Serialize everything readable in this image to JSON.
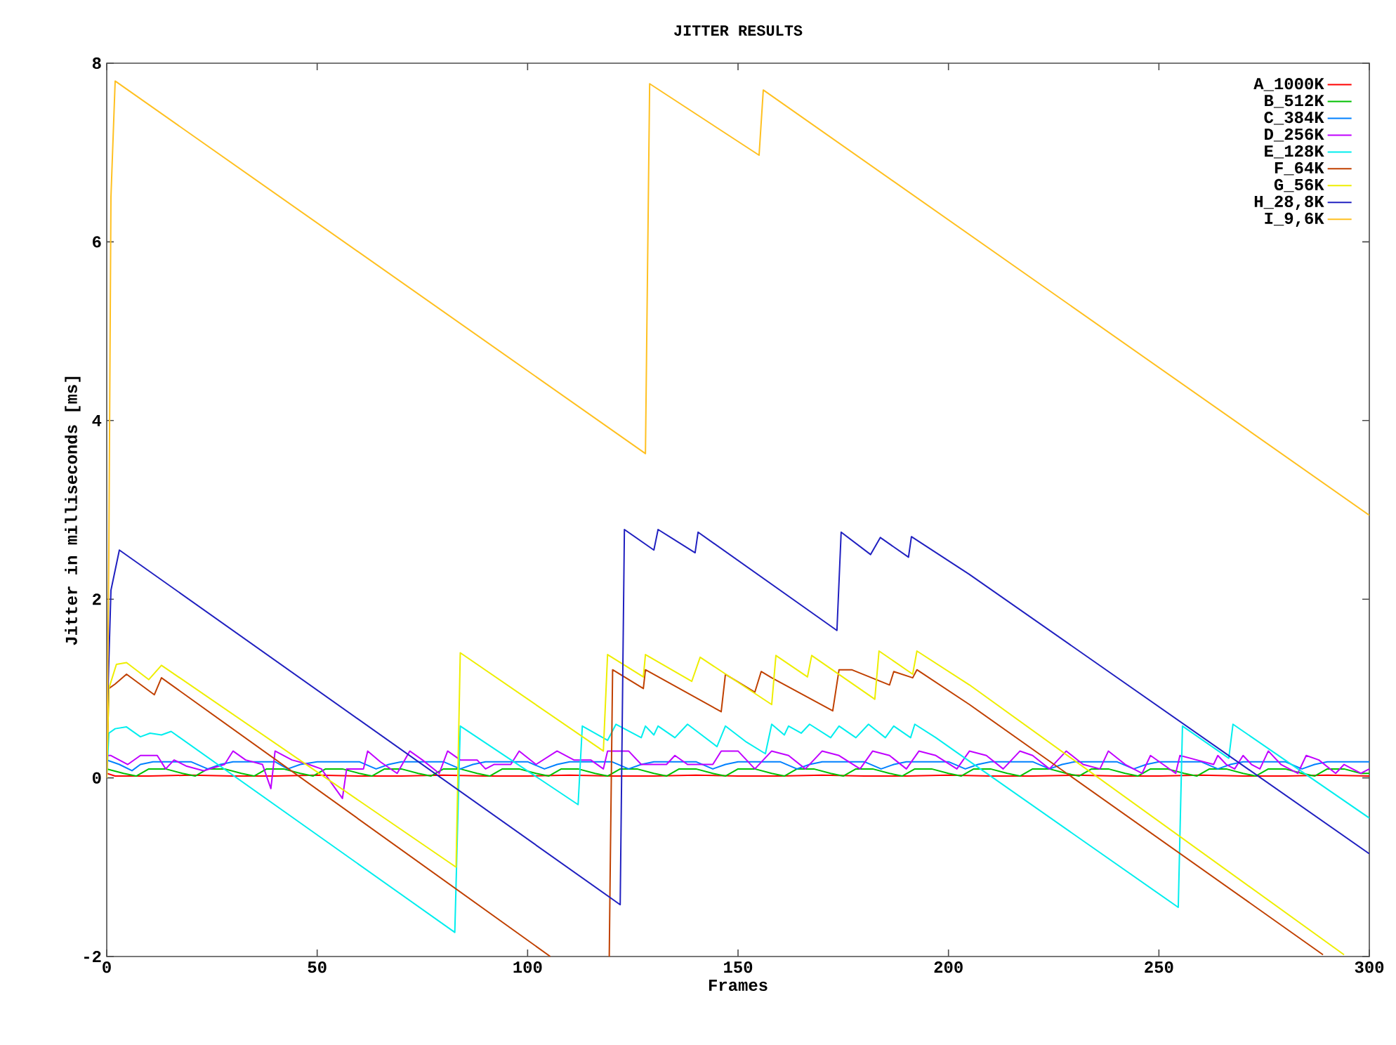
{
  "chart_data": {
    "type": "line",
    "title": "JITTER RESULTS",
    "xlabel": "Frames",
    "ylabel": "Jitter in milliseconds [ms]",
    "xlim": [
      0,
      300
    ],
    "ylim": [
      -2,
      8
    ],
    "xticks": [
      0,
      50,
      100,
      150,
      200,
      250,
      300
    ],
    "yticks": [
      -2,
      0,
      2,
      4,
      6,
      8
    ],
    "legend": "top right",
    "grid": false,
    "series": [
      {
        "name": "A_1000K",
        "color": "#ff0000",
        "x": [
          0,
          2,
          10,
          20,
          30,
          40,
          50,
          60,
          70,
          80,
          90,
          100,
          110,
          120,
          130,
          140,
          150,
          160,
          170,
          180,
          190,
          200,
          210,
          220,
          230,
          240,
          250,
          260,
          270,
          280,
          290,
          300
        ],
        "values": [
          0.05,
          0.02,
          0.02,
          0.03,
          0.02,
          0.02,
          0.03,
          0.02,
          0.02,
          0.03,
          0.02,
          0.02,
          0.03,
          0.02,
          0.02,
          0.03,
          0.02,
          0.02,
          0.03,
          0.02,
          0.02,
          0.03,
          0.02,
          0.02,
          0.03,
          0.02,
          0.02,
          0.03,
          0.02,
          0.02,
          0.03,
          0.02
        ]
      },
      {
        "name": "B_512K",
        "color": "#00c000",
        "x": [
          0,
          4,
          7,
          10,
          14,
          18,
          21,
          24,
          28,
          32,
          35,
          38,
          42,
          46,
          49,
          52,
          56,
          60,
          63,
          66,
          70,
          74,
          77,
          80,
          84,
          88,
          91,
          94,
          98,
          102,
          105,
          108,
          112,
          116,
          119,
          122,
          126,
          130,
          133,
          136,
          140,
          144,
          147,
          150,
          154,
          158,
          161,
          164,
          168,
          172,
          175,
          178,
          182,
          186,
          189,
          192,
          196,
          200,
          203,
          206,
          210,
          214,
          217,
          220,
          224,
          228,
          231,
          234,
          238,
          242,
          245,
          248,
          252,
          256,
          259,
          262,
          266,
          270,
          273,
          276,
          280,
          284,
          287,
          290,
          294,
          298,
          300
        ],
        "values": [
          0.1,
          0.05,
          0.02,
          0.1,
          0.1,
          0.05,
          0.02,
          0.1,
          0.1,
          0.05,
          0.02,
          0.1,
          0.1,
          0.05,
          0.02,
          0.1,
          0.1,
          0.05,
          0.02,
          0.1,
          0.1,
          0.05,
          0.02,
          0.1,
          0.1,
          0.05,
          0.02,
          0.1,
          0.1,
          0.05,
          0.02,
          0.1,
          0.1,
          0.05,
          0.02,
          0.1,
          0.1,
          0.05,
          0.02,
          0.1,
          0.1,
          0.05,
          0.02,
          0.1,
          0.1,
          0.05,
          0.02,
          0.1,
          0.1,
          0.05,
          0.02,
          0.1,
          0.1,
          0.05,
          0.02,
          0.1,
          0.1,
          0.05,
          0.02,
          0.1,
          0.1,
          0.05,
          0.02,
          0.1,
          0.1,
          0.05,
          0.02,
          0.1,
          0.1,
          0.05,
          0.02,
          0.1,
          0.1,
          0.05,
          0.02,
          0.1,
          0.1,
          0.05,
          0.02,
          0.1,
          0.1,
          0.05,
          0.02,
          0.1,
          0.1,
          0.05,
          0.05
        ]
      },
      {
        "name": "C_384K",
        "color": "#0080ff",
        "x": [
          0,
          3,
          6,
          8,
          11,
          20,
          24,
          27,
          30,
          40,
          43,
          46,
          50,
          60,
          64,
          67,
          70,
          80,
          84,
          87,
          90,
          100,
          104,
          107,
          110,
          120,
          124,
          127,
          130,
          140,
          144,
          147,
          150,
          160,
          164,
          167,
          170,
          180,
          184,
          187,
          190,
          200,
          204,
          207,
          210,
          220,
          224,
          227,
          230,
          240,
          244,
          247,
          250,
          260,
          264,
          267,
          270,
          280,
          284,
          287,
          290,
          300
        ],
        "values": [
          0.2,
          0.15,
          0.08,
          0.15,
          0.18,
          0.18,
          0.1,
          0.15,
          0.18,
          0.18,
          0.1,
          0.15,
          0.18,
          0.18,
          0.1,
          0.15,
          0.18,
          0.18,
          0.1,
          0.15,
          0.18,
          0.18,
          0.1,
          0.15,
          0.18,
          0.18,
          0.1,
          0.15,
          0.18,
          0.18,
          0.1,
          0.15,
          0.18,
          0.18,
          0.1,
          0.15,
          0.18,
          0.18,
          0.1,
          0.15,
          0.18,
          0.18,
          0.1,
          0.15,
          0.18,
          0.18,
          0.1,
          0.15,
          0.18,
          0.18,
          0.1,
          0.15,
          0.18,
          0.18,
          0.1,
          0.15,
          0.18,
          0.18,
          0.1,
          0.15,
          0.18,
          0.18
        ]
      },
      {
        "name": "D_256K",
        "color": "#c000ff",
        "x": [
          0,
          1,
          5,
          8,
          12,
          14,
          16,
          19,
          23,
          28,
          30,
          33,
          37,
          39,
          40,
          44,
          48,
          51,
          56,
          57,
          61,
          62,
          65,
          69,
          72,
          75,
          79,
          81,
          84,
          88,
          90,
          92,
          96,
          98,
          102,
          107,
          111,
          115,
          118,
          119,
          124,
          127,
          133,
          135,
          138,
          144,
          146,
          150,
          154,
          158,
          162,
          166,
          170,
          174,
          179,
          182,
          186,
          190,
          193,
          197,
          202,
          205,
          209,
          213,
          217,
          220,
          224,
          228,
          232,
          236,
          238,
          242,
          246,
          248,
          251,
          254,
          255,
          259,
          263,
          264,
          266,
          268,
          270,
          272,
          274,
          276,
          279,
          283,
          285,
          288,
          292,
          294,
          298,
          300
        ],
        "values": [
          0.25,
          0.25,
          0.15,
          0.25,
          0.25,
          0.1,
          0.2,
          0.13,
          0.08,
          0.15,
          0.3,
          0.2,
          0.15,
          -0.12,
          0.3,
          0.2,
          0.15,
          0.1,
          -0.23,
          0.1,
          0.1,
          0.3,
          0.18,
          0.05,
          0.3,
          0.2,
          0.05,
          0.3,
          0.2,
          0.2,
          0.1,
          0.15,
          0.15,
          0.3,
          0.15,
          0.3,
          0.2,
          0.2,
          0.1,
          0.3,
          0.3,
          0.15,
          0.15,
          0.25,
          0.15,
          0.15,
          0.3,
          0.3,
          0.1,
          0.3,
          0.25,
          0.1,
          0.3,
          0.25,
          0.1,
          0.3,
          0.25,
          0.1,
          0.3,
          0.25,
          0.1,
          0.3,
          0.25,
          0.1,
          0.3,
          0.25,
          0.1,
          0.3,
          0.15,
          0.1,
          0.3,
          0.15,
          0.05,
          0.25,
          0.15,
          0.05,
          0.25,
          0.2,
          0.15,
          0.25,
          0.15,
          0.1,
          0.25,
          0.15,
          0.1,
          0.3,
          0.15,
          0.05,
          0.25,
          0.2,
          0.05,
          0.15,
          0.05,
          0.1
        ]
      },
      {
        "name": "E_128K",
        "color": "#00eeee",
        "x": [
          0,
          0.5,
          2,
          4.7,
          8,
          10.3,
          13,
          15.3,
          82.7,
          84,
          112,
          113,
          119,
          121,
          127,
          128,
          130,
          131,
          135,
          138,
          145,
          147,
          152,
          156.5,
          158,
          161,
          162,
          165,
          167,
          172,
          174,
          178,
          181,
          185,
          187,
          191,
          192,
          197,
          201.5,
          254.6,
          255.6,
          266.6,
          267.6,
          300
        ],
        "values": [
          0,
          0.5,
          0.55,
          0.57,
          0.46,
          0.5,
          0.48,
          0.52,
          -1.73,
          0.58,
          -0.3,
          0.58,
          0.42,
          0.6,
          0.45,
          0.58,
          0.48,
          0.58,
          0.45,
          0.6,
          0.35,
          0.58,
          0.4,
          0.27,
          0.6,
          0.48,
          0.58,
          0.5,
          0.6,
          0.45,
          0.58,
          0.45,
          0.6,
          0.45,
          0.58,
          0.45,
          0.6,
          0.45,
          0.3,
          -1.45,
          0.58,
          0.22,
          0.6,
          -0.45
        ]
      },
      {
        "name": "F_64K",
        "color": "#c04000",
        "x": [
          0,
          0.5,
          2,
          4.7,
          11.3,
          13,
          105.4,
          112,
          119.4,
          119.6,
          120.2,
          127.5,
          128,
          146,
          147,
          154,
          155.5,
          158,
          172.5,
          174,
          177,
          186,
          187,
          191.5,
          192.5,
          205,
          289
        ],
        "values": [
          0,
          1.0,
          1.05,
          1.16,
          0.93,
          1.12,
          -2,
          null,
          -2,
          -1.15,
          1.21,
          1.0,
          1.21,
          0.74,
          1.16,
          0.96,
          1.19,
          1.12,
          0.75,
          1.21,
          1.21,
          1.04,
          1.19,
          1.12,
          1.21,
          0.82,
          -1.98
        ]
      },
      {
        "name": "G_56K",
        "color": "#eeee00",
        "x": [
          0,
          0.5,
          2.3,
          4.7,
          10,
          13,
          83,
          84,
          118,
          119,
          127.5,
          128,
          139,
          141,
          158,
          159,
          166.5,
          167.5,
          182.5,
          183.5,
          191.5,
          192.5,
          205,
          294
        ],
        "values": [
          0,
          1.0,
          1.27,
          1.29,
          1.1,
          1.26,
          -1.0,
          1.4,
          0.3,
          1.38,
          1.13,
          1.38,
          1.08,
          1.35,
          0.82,
          1.37,
          1.13,
          1.37,
          0.88,
          1.42,
          1.16,
          1.42,
          1.04,
          -1.98
        ]
      },
      {
        "name": "H_28,8K",
        "color": "#2020c0",
        "x": [
          0,
          1,
          3,
          122,
          123,
          130,
          131,
          139.8,
          140.5,
          173.5,
          174.5,
          181.5,
          183.8,
          190.5,
          191.2,
          204.9,
          300
        ],
        "values": [
          0.5,
          2.1,
          2.55,
          -1.42,
          2.78,
          2.55,
          2.78,
          2.52,
          2.75,
          1.65,
          2.75,
          2.5,
          2.69,
          2.47,
          2.7,
          2.28,
          -0.85
        ]
      },
      {
        "name": "I_9,6K",
        "color": "#ffc020",
        "x": [
          0,
          0.5,
          1,
          2,
          128,
          129,
          155,
          156,
          300
        ],
        "values": [
          0,
          2.5,
          6.5,
          7.8,
          3.63,
          7.77,
          6.97,
          7.7,
          2.94
        ]
      }
    ]
  }
}
